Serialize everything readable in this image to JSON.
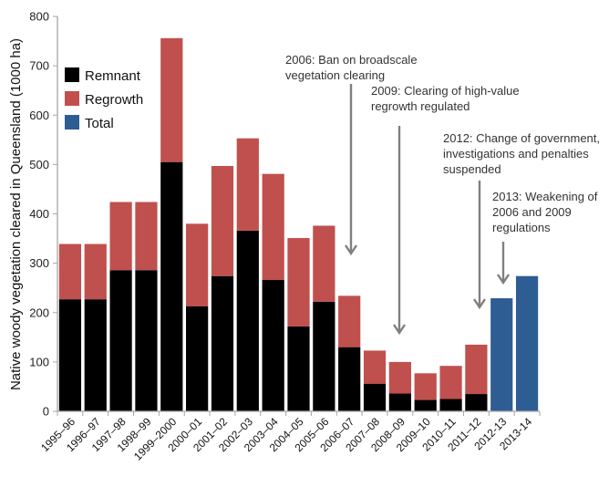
{
  "chart_data": {
    "type": "bar",
    "stacked": true,
    "title": "",
    "xlabel": "",
    "ylabel": "Native woody vegetation cleared in Queensland  (1000 ha)",
    "ylim": [
      0,
      800
    ],
    "yticks": [
      0,
      100,
      200,
      300,
      400,
      500,
      600,
      700,
      800
    ],
    "grid": false,
    "legend_position": "top-left",
    "categories": [
      "1995–96",
      "1996–97",
      "1997–98",
      "1998–99",
      "1999–2000",
      "2000–01",
      "2001–02",
      "2002–03",
      "2003–04",
      "2004–05",
      "2005–06",
      "2006–07",
      "2007–08",
      "2008–09",
      "2009–10",
      "2010–11",
      "2011–12",
      "2012-13",
      "2013-14"
    ],
    "series": [
      {
        "name": "Remnant",
        "color": "#000000",
        "values": [
          227,
          227,
          286,
          286,
          505,
          213,
          274,
          366,
          266,
          172,
          222,
          130,
          56,
          36,
          23,
          25,
          35,
          null,
          null
        ]
      },
      {
        "name": "Regrowth",
        "color": "#c0504d",
        "values": [
          112,
          112,
          138,
          138,
          251,
          167,
          223,
          187,
          215,
          179,
          154,
          104,
          67,
          64,
          54,
          67,
          100,
          null,
          null
        ]
      },
      {
        "name": "Total",
        "color": "#2e5d94",
        "values": [
          null,
          null,
          null,
          null,
          null,
          null,
          null,
          null,
          null,
          null,
          null,
          null,
          null,
          null,
          null,
          null,
          null,
          229,
          274
        ]
      }
    ],
    "annotations": [
      {
        "lines": [
          "2006: Ban on broadscale",
          "vegetation clearing"
        ],
        "points_to": "2006–07"
      },
      {
        "lines": [
          "2009: Clearing of high-value",
          "regrowth  regulated"
        ],
        "points_to": "2008–09"
      },
      {
        "lines": [
          "2012: Change of government,",
          "investigations and penalties",
          "suspended"
        ],
        "points_to": "2011–12"
      },
      {
        "lines": [
          "2013: Weakening of",
          "2006 and 2009",
          "regulations"
        ],
        "points_to": "2012-13"
      }
    ]
  },
  "colors": {
    "axis": "#a6a6a6",
    "arrow": "#7f7f7f"
  }
}
